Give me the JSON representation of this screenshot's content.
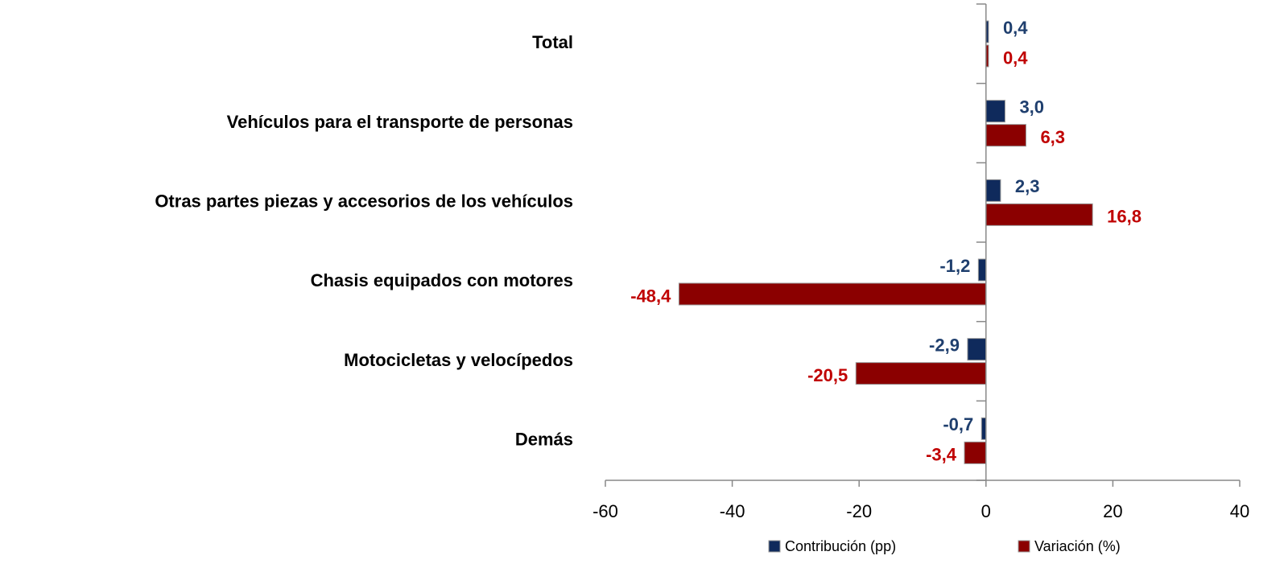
{
  "chart_data": {
    "type": "bar",
    "orientation": "horizontal",
    "categories": [
      "Total",
      "Vehículos para el transporte de personas",
      "Otras partes piezas y accesorios de los vehículos",
      "Chasis equipados con motores",
      "Motocicletas y velocípedos",
      "Demás"
    ],
    "series": [
      {
        "name": "Contribución (pp)",
        "color": "#0f2a5c",
        "label_color": "#1f3f6e",
        "values": [
          0.4,
          3.0,
          2.3,
          -1.2,
          -2.9,
          -0.7
        ],
        "value_labels": [
          "0,4",
          "3,0",
          "2,3",
          "-1,2",
          "-2,9",
          "-0,7"
        ]
      },
      {
        "name": "Variación (%)",
        "color": "#8b0000",
        "label_color": "#c00000",
        "values": [
          0.4,
          6.3,
          16.8,
          -48.4,
          -20.5,
          -3.4
        ],
        "value_labels": [
          "0,4",
          "6,3",
          "16,8",
          "-48,4",
          "-20,5",
          "-3,4"
        ]
      }
    ],
    "xlim": [
      -60,
      40
    ],
    "xticks": [
      -60,
      -40,
      -20,
      0,
      20,
      40
    ],
    "legend": "bottom"
  }
}
